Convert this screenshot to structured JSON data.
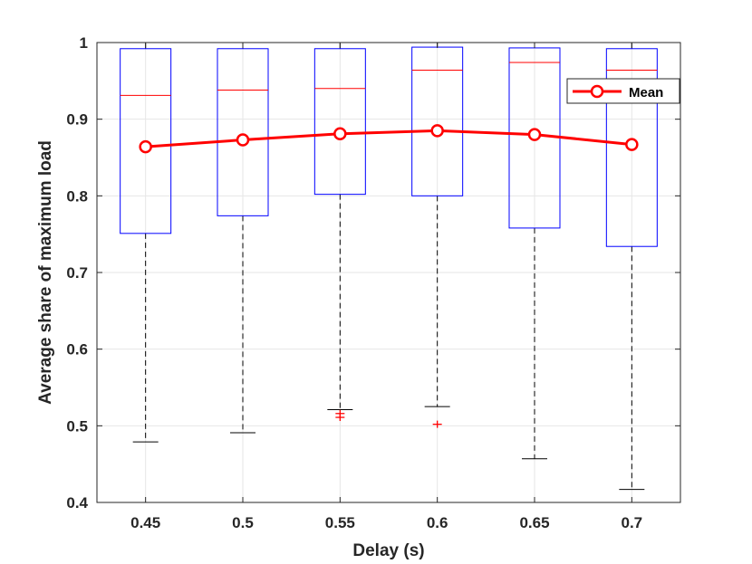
{
  "chart_data": {
    "type": "box",
    "xlabel": "Delay (s)",
    "ylabel": "Average share of maximum load",
    "categories": [
      "0.45",
      "0.5",
      "0.55",
      "0.6",
      "0.65",
      "0.7"
    ],
    "ylim": [
      0.4,
      1.0
    ],
    "yticks": [
      "0.4",
      "0.5",
      "0.6",
      "0.7",
      "0.8",
      "0.9",
      "1"
    ],
    "grid": true,
    "boxes": [
      {
        "category": "0.45",
        "whisker_low": 0.479,
        "q1": 0.751,
        "median": 0.931,
        "q3": 0.992,
        "whisker_high": 1.0,
        "outliers": []
      },
      {
        "category": "0.5",
        "whisker_low": 0.491,
        "q1": 0.774,
        "median": 0.938,
        "q3": 0.992,
        "whisker_high": 1.0,
        "outliers": []
      },
      {
        "category": "0.55",
        "whisker_low": 0.521,
        "q1": 0.802,
        "median": 0.94,
        "q3": 0.992,
        "whisker_high": 1.0,
        "outliers": [
          0.516,
          0.511
        ]
      },
      {
        "category": "0.6",
        "whisker_low": 0.525,
        "q1": 0.8,
        "median": 0.964,
        "q3": 0.994,
        "whisker_high": 1.0,
        "outliers": [
          0.502
        ]
      },
      {
        "category": "0.65",
        "whisker_low": 0.457,
        "q1": 0.758,
        "median": 0.974,
        "q3": 0.993,
        "whisker_high": 1.0,
        "outliers": []
      },
      {
        "category": "0.7",
        "whisker_low": 0.417,
        "q1": 0.734,
        "median": 0.964,
        "q3": 0.992,
        "whisker_high": 1.0,
        "outliers": []
      }
    ],
    "series": [
      {
        "name": "Mean",
        "values": [
          0.864,
          0.873,
          0.881,
          0.885,
          0.88,
          0.867
        ],
        "color": "#ff0000",
        "marker": "circle"
      }
    ],
    "legend_position": "top-right",
    "colors": {
      "box": "#0000ff",
      "median": "#ff0000",
      "whisker": "#000000",
      "outlier": "#ff0000",
      "grid": "#e6e6e6",
      "axis": "#262626"
    }
  }
}
